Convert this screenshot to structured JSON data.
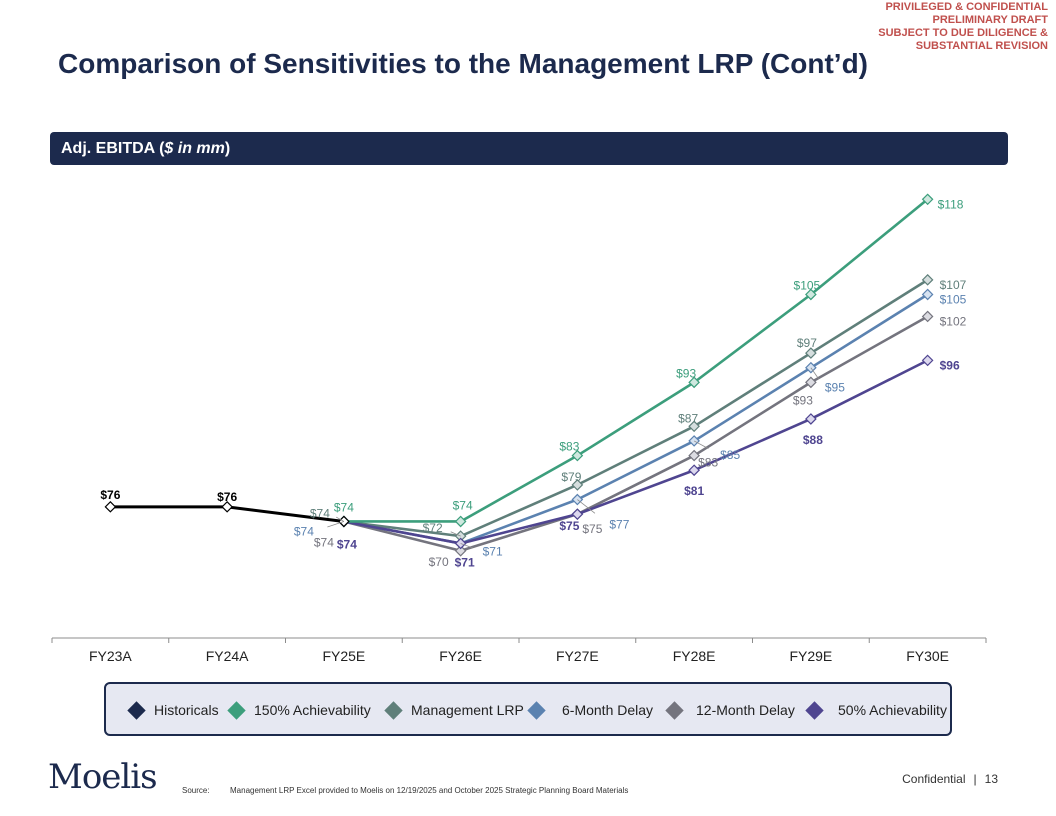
{
  "disclaimer": {
    "line1": "PRIVILEGED & CONFIDENTIAL",
    "line2": "PRELIMINARY DRAFT",
    "line3": "SUBJECT TO DUE DILIGENCE &",
    "line4": "SUBSTANTIAL REVISION"
  },
  "page_title": "Comparison of Sensitivities to the Management LRP (Cont’d)",
  "section": {
    "label": "Adj. EBITDA (",
    "unit": "$ in mm",
    "close": ")"
  },
  "colors": {
    "navy": "#1c2a4d",
    "historicals": "#000000",
    "achievability150": "#3c9e7c",
    "management": "#5f7f7a",
    "delay6": "#5b82b0",
    "delay12": "#74747e",
    "achievability50": "#4f4590"
  },
  "chart_data": {
    "type": "line",
    "title": "Adj. EBITDA ($ in mm)",
    "categories": [
      "FY23A",
      "FY24A",
      "FY25E",
      "FY26E",
      "FY27E",
      "FY28E",
      "FY29E",
      "FY30E"
    ],
    "ylim": [
      60,
      122
    ],
    "series": [
      {
        "name": "Historicals",
        "key": "historicals",
        "color": "#000000",
        "marker_fill": "#ffffff",
        "values": [
          76,
          76,
          74,
          null,
          null,
          null,
          null,
          null
        ],
        "labels": [
          "$76",
          "$76",
          "",
          "",
          "",
          "",
          "",
          ""
        ]
      },
      {
        "name": "150% Achievability",
        "key": "achievability150",
        "color": "#3c9e7c",
        "marker_fill": "#cfe8df",
        "values": [
          null,
          null,
          74,
          74,
          83,
          93,
          105,
          118
        ],
        "labels": [
          "",
          "",
          "$74",
          "$74",
          "$83",
          "$93",
          "$105",
          "$118"
        ]
      },
      {
        "name": "Management LRP",
        "key": "management",
        "color": "#5f7f7a",
        "marker_fill": "#d5dede",
        "values": [
          null,
          null,
          74,
          72,
          79,
          87,
          97,
          107
        ],
        "labels": [
          "",
          "",
          "$74",
          "$72",
          "$79",
          "$87",
          "$97",
          "$107"
        ]
      },
      {
        "name": "6-Month Delay",
        "key": "delay6",
        "color": "#5b82b0",
        "marker_fill": "#d6e2f1",
        "values": [
          null,
          null,
          74,
          71,
          77,
          85,
          95,
          105
        ],
        "labels": [
          "",
          "",
          "$74",
          "$71",
          "$77",
          "$85",
          "$95",
          "$105"
        ]
      },
      {
        "name": "12-Month Delay",
        "key": "delay12",
        "color": "#74747e",
        "marker_fill": "#dcdce2",
        "values": [
          null,
          null,
          74,
          70,
          75,
          83,
          93,
          102
        ],
        "labels": [
          "",
          "",
          "$74",
          "$70",
          "$75",
          "$83",
          "$93",
          "$102"
        ]
      },
      {
        "name": "50% Achievability",
        "key": "achievability50",
        "color": "#4f4590",
        "marker_fill": "#dcd8ee",
        "values": [
          null,
          null,
          74,
          71,
          75,
          81,
          88,
          96
        ],
        "labels": [
          "",
          "",
          "$74",
          "$71",
          "$75",
          "$81",
          "$88",
          "$96"
        ]
      }
    ]
  },
  "legend": {
    "historicals": "Historicals",
    "achievability150": "150% Achievability",
    "management": "Management LRP",
    "delay6": "6-Month Delay",
    "delay12": "12-Month Delay",
    "achievability50": "50% Achievability"
  },
  "footer": {
    "logo": "Moelis",
    "source_label": "Source:",
    "source_text": "Management LRP Excel provided to Moelis on 12/19/2025 and October 2025 Strategic Planning Board Materials",
    "confidential": "Confidential",
    "separator": "|",
    "page_number": "13"
  }
}
